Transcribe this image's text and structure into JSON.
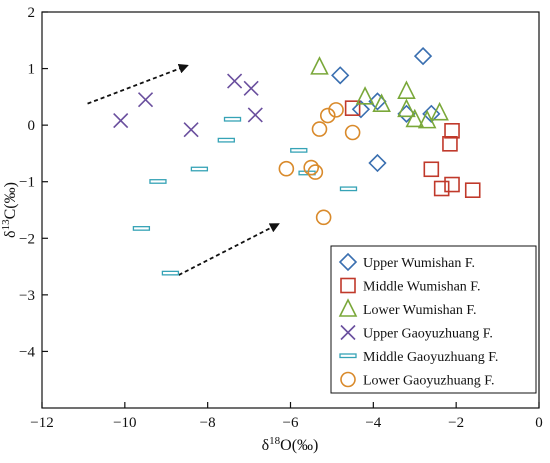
{
  "chart_data": {
    "type": "scatter",
    "title": "",
    "xlabel": "δ18O(‰)",
    "ylabel": "δ13C(‰)",
    "xlim": [
      -12,
      0
    ],
    "ylim": [
      -5,
      2
    ],
    "xticks": [
      -12,
      -10,
      -8,
      -6,
      -4,
      -2,
      0
    ],
    "yticks": [
      -4,
      -3,
      -2,
      -1,
      0,
      1,
      2
    ],
    "xtick_labels": [
      "−12",
      "−10",
      "−8",
      "−6",
      "−4",
      "−2",
      "0"
    ],
    "ytick_labels": [
      "−4",
      "−3",
      "−2",
      "−1",
      "0",
      "1",
      "2"
    ],
    "grid": false,
    "legend_position": "bottom-right",
    "series": [
      {
        "name": "Upper Wumishan  F.",
        "marker": "diamond",
        "color": "#3a6fb0",
        "points": [
          [
            -2.8,
            1.22
          ],
          [
            -4.8,
            0.88
          ],
          [
            -3.9,
            0.42
          ],
          [
            -4.3,
            0.28
          ],
          [
            -3.2,
            0.2
          ],
          [
            -2.6,
            0.2
          ],
          [
            -3.9,
            -0.67
          ]
        ]
      },
      {
        "name": "Middle Wumishan  F.",
        "marker": "square",
        "color": "#c0392b",
        "points": [
          [
            -4.5,
            0.3
          ],
          [
            -2.1,
            -0.1
          ],
          [
            -2.15,
            -0.33
          ],
          [
            -2.6,
            -0.78
          ],
          [
            -2.1,
            -1.05
          ],
          [
            -2.35,
            -1.12
          ],
          [
            -1.6,
            -1.15
          ]
        ]
      },
      {
        "name": "Lower Wumishan  F.",
        "marker": "triangle",
        "color": "#7aa83a",
        "points": [
          [
            -5.3,
            1.03
          ],
          [
            -3.2,
            0.6
          ],
          [
            -4.2,
            0.5
          ],
          [
            -3.8,
            0.37
          ],
          [
            -3.2,
            0.28
          ],
          [
            -2.4,
            0.22
          ],
          [
            -3.0,
            0.1
          ],
          [
            -2.7,
            0.08
          ]
        ]
      },
      {
        "name": "Upper Gaoyuzhuang  F.",
        "marker": "x",
        "color": "#6a4f9e",
        "points": [
          [
            -10.1,
            0.08
          ],
          [
            -9.5,
            0.45
          ],
          [
            -8.4,
            -0.08
          ],
          [
            -7.35,
            0.78
          ],
          [
            -6.95,
            0.65
          ],
          [
            -6.85,
            0.18
          ]
        ]
      },
      {
        "name": "Middle Gaoyuzhuang  F.",
        "marker": "dash",
        "color": "#36a3b6",
        "points": [
          [
            -7.4,
            0.1
          ],
          [
            -7.55,
            -0.27
          ],
          [
            -5.8,
            -0.45
          ],
          [
            -8.2,
            -0.78
          ],
          [
            -9.2,
            -1.0
          ],
          [
            -5.6,
            -0.85
          ],
          [
            -4.6,
            -1.13
          ],
          [
            -9.6,
            -1.83
          ],
          [
            -8.9,
            -2.62
          ]
        ]
      },
      {
        "name": "Lower Gaoyuzhuang  F.",
        "marker": "circle",
        "color": "#d98a2b",
        "points": [
          [
            -4.9,
            0.27
          ],
          [
            -5.1,
            0.17
          ],
          [
            -5.3,
            -0.07
          ],
          [
            -4.5,
            -0.13
          ],
          [
            -6.1,
            -0.77
          ],
          [
            -5.5,
            -0.75
          ],
          [
            -5.4,
            -0.83
          ],
          [
            -5.2,
            -1.63
          ]
        ]
      }
    ],
    "annotations": [
      {
        "type": "arrow",
        "style": "dashed",
        "from": [
          -10.9,
          0.38
        ],
        "to": [
          -8.5,
          1.05
        ]
      },
      {
        "type": "arrow",
        "style": "dashed",
        "from": [
          -8.7,
          -2.65
        ],
        "to": [
          -6.3,
          -1.75
        ]
      }
    ]
  }
}
